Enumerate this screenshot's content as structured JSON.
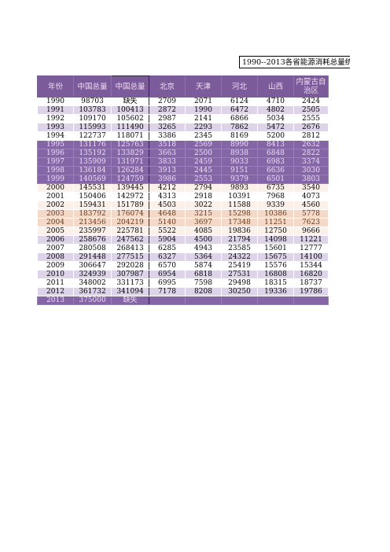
{
  "title": "1990--2013各省能源消耗总量统",
  "headers": [
    "年份",
    "中国总量",
    "中国总量",
    "北京",
    "天津",
    "河北",
    "山西",
    "内蒙古自治区"
  ],
  "rows": [
    {
      "style": "r-w",
      "cells": [
        "1990",
        "98703",
        "缺失",
        "2709",
        "2071",
        "6124",
        "4710",
        "2424"
      ]
    },
    {
      "style": "r-l",
      "cells": [
        "1991",
        "103783",
        "100413",
        "2872",
        "1990",
        "6472",
        "4802",
        "2505"
      ]
    },
    {
      "style": "r-w",
      "cells": [
        "1992",
        "109170",
        "105602",
        "2987",
        "2141",
        "6866",
        "5034",
        "2555"
      ]
    },
    {
      "style": "r-l",
      "cells": [
        "1993",
        "115993",
        "111490",
        "3265",
        "2293",
        "7862",
        "5472",
        "2676"
      ]
    },
    {
      "style": "r-w",
      "cells": [
        "1994",
        "122737",
        "118071",
        "3386",
        "2345",
        "8169",
        "5200",
        "2812"
      ]
    },
    {
      "style": "r-p",
      "cells": [
        "1995",
        "131176",
        "125763",
        "3518",
        "2569",
        "8990",
        "8413",
        "2632"
      ]
    },
    {
      "style": "r-p",
      "cells": [
        "1996",
        "135192",
        "133829",
        "3663",
        "2500",
        "8938",
        "6848",
        "2822"
      ]
    },
    {
      "style": "r-p",
      "cells": [
        "1997",
        "135909",
        "131971",
        "3833",
        "2459",
        "9033",
        "6983",
        "3374"
      ]
    },
    {
      "style": "r-p",
      "cells": [
        "1998",
        "136184",
        "126284",
        "3913",
        "2445",
        "9151",
        "6636",
        "3030"
      ]
    },
    {
      "style": "r-p",
      "cells": [
        "1999",
        "140569",
        "124759",
        "3986",
        "2553",
        "9379",
        "6501",
        "3803"
      ]
    },
    {
      "style": "r-bw",
      "cells": [
        "2000",
        "145531",
        "139445",
        "4212",
        "2794",
        "9893",
        "6735",
        "3540"
      ]
    },
    {
      "style": "r-w",
      "cells": [
        "2001",
        "150406",
        "142972",
        "4313",
        "2918",
        "10391",
        "7968",
        "4073"
      ]
    },
    {
      "style": "r-bw",
      "cells": [
        "2002",
        "159431",
        "151789",
        "4503",
        "3022",
        "11588",
        "9339",
        "4560"
      ]
    },
    {
      "style": "r-bp",
      "cells": [
        "2003",
        "183792",
        "176074",
        "4648",
        "3215",
        "15298",
        "10386",
        "5778"
      ]
    },
    {
      "style": "r-bp",
      "cells": [
        "2004",
        "213456",
        "204219",
        "5140",
        "3697",
        "17348",
        "11251",
        "7623"
      ]
    },
    {
      "style": "r-bw",
      "cells": [
        "2005",
        "235997",
        "225781",
        "5522",
        "4085",
        "19836",
        "12750",
        "9666"
      ]
    },
    {
      "style": "r-l",
      "cells": [
        "2006",
        "258676",
        "247562",
        "5904",
        "4500",
        "21794",
        "14098",
        "11221"
      ]
    },
    {
      "style": "r-w",
      "cells": [
        "2007",
        "280508",
        "268413",
        "6285",
        "4943",
        "23585",
        "15601",
        "12777"
      ]
    },
    {
      "style": "r-l",
      "cells": [
        "2008",
        "291448",
        "277515",
        "6327",
        "5364",
        "24322",
        "15675",
        "14100"
      ]
    },
    {
      "style": "r-w",
      "cells": [
        "2009",
        "306647",
        "292028",
        "6570",
        "5874",
        "25419",
        "15576",
        "15344"
      ]
    },
    {
      "style": "r-l",
      "cells": [
        "2010",
        "324939",
        "307987",
        "6954",
        "6818",
        "27531",
        "16808",
        "16820"
      ]
    },
    {
      "style": "r-w",
      "cells": [
        "2011",
        "348002",
        "331173",
        "6995",
        "7598",
        "29498",
        "18315",
        "18737"
      ]
    },
    {
      "style": "r-l",
      "cells": [
        "2012",
        "361732",
        "341094",
        "7178",
        "8208",
        "30250",
        "19336",
        "19786"
      ]
    },
    {
      "style": "r-last",
      "cells": [
        "2013",
        "375000",
        "缺失",
        "",
        "",
        "",
        "",
        ""
      ]
    }
  ]
}
